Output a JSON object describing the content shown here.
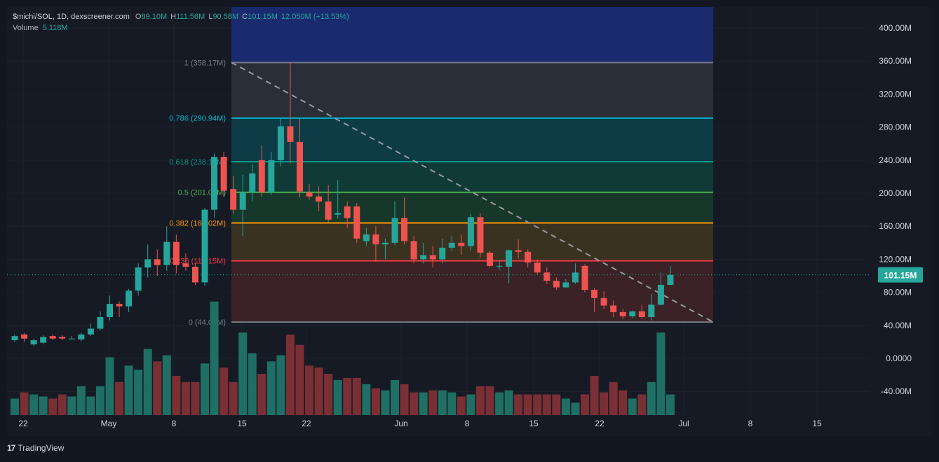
{
  "legend": {
    "pair": "$michi/SOL, 1D, dexscreener.com",
    "o_label": "O",
    "o_value": "89.10M",
    "h_label": "H",
    "h_value": "111.56M",
    "l_label": "L",
    "l_value": "90.58M",
    "c_label": "C",
    "c_value": "101.15M",
    "change": "12.050M (+13.53%)",
    "volume_label": "Volume",
    "volume_value": "5.118M"
  },
  "footer": {
    "brand": "TradingView",
    "logo_glyph": "17"
  },
  "colors": {
    "up": "#26a69a",
    "down": "#ef5350",
    "up_volume": "#1f6f64",
    "down_volume": "#7a2f35",
    "fib_1": "#787b86",
    "fib_786": "#00bcd4",
    "fib_618": "#009688",
    "fib_5": "#4caf50",
    "fib_382": "#ff9800",
    "fib_236": "#f23645",
    "fib_0": "#787b86",
    "ext_band": "#1a2a6e",
    "price_label_bg": "#26a69a"
  },
  "chart_data": {
    "type": "candlestick",
    "y_axis_ticks": [
      "400.00M",
      "360.00M",
      "320.00M",
      "280.00M",
      "240.00M",
      "200.00M",
      "160.00M",
      "120.00M",
      "80.00M",
      "40.00M",
      "0.0000",
      "-40.00M"
    ],
    "x_axis_ticks": [
      "22",
      "May",
      "8",
      "15",
      "22",
      "Jun",
      "8",
      "15",
      "22",
      "Jul",
      "8",
      "15"
    ],
    "ylim": [
      -62,
      425
    ],
    "current_price": "101.15M",
    "grid": true,
    "fibonacci": [
      {
        "level": "1",
        "value": 358.17,
        "label": "1 (358.17M)"
      },
      {
        "level": "0.786",
        "value": 290.94,
        "label": "0.786 (290.94M)"
      },
      {
        "level": "0.618",
        "value": 238.16,
        "label": "0.618 (238.16M)"
      },
      {
        "level": "0.5",
        "value": 201.09,
        "label": "0.5 (201.09M)"
      },
      {
        "level": "0.382",
        "value": 164.02,
        "label": "0.382 (164.02M)"
      },
      {
        "level": "0.236",
        "value": 118.15,
        "label": "0.236 (118.15M)"
      },
      {
        "level": "0",
        "value": 44.0,
        "label": "0 (44.00M)"
      }
    ],
    "candles": [
      [
        22,
        27,
        20,
        29,
        "v",
        8
      ],
      [
        29,
        24,
        20,
        31,
        "v",
        11
      ],
      [
        17,
        22,
        15,
        24,
        "v",
        10
      ],
      [
        19,
        26,
        17,
        28,
        "v",
        9
      ],
      [
        27,
        24,
        22,
        29,
        "v",
        8
      ],
      [
        26,
        24,
        22,
        28,
        "v",
        10
      ],
      [
        24,
        24,
        23,
        27,
        "v",
        9
      ],
      [
        23,
        29,
        21,
        31,
        "v",
        14
      ],
      [
        29,
        36,
        27,
        42,
        "v",
        9
      ],
      [
        36,
        50,
        34,
        57,
        "v",
        14
      ],
      [
        50,
        66,
        46,
        76,
        "v",
        28
      ],
      [
        66,
        63,
        50,
        69,
        "v",
        16
      ],
      [
        63,
        82,
        56,
        84,
        "v",
        24
      ],
      [
        82,
        110,
        76,
        115,
        "v",
        22
      ],
      [
        110,
        120,
        98,
        138,
        "v",
        32
      ],
      [
        120,
        113,
        100,
        132,
        "v",
        26
      ],
      [
        113,
        141,
        106,
        160,
        "v",
        29
      ],
      [
        141,
        113,
        103,
        150,
        "v",
        19
      ],
      [
        115,
        111,
        106,
        127,
        "v",
        16
      ],
      [
        111,
        92,
        89,
        115,
        "v",
        16
      ],
      [
        92,
        180,
        88,
        182,
        "v",
        25
      ],
      [
        180,
        244,
        170,
        248,
        "v",
        55
      ],
      [
        244,
        203,
        196,
        250,
        "v",
        23
      ],
      [
        205,
        180,
        175,
        221,
        "v",
        16
      ],
      [
        180,
        201,
        148,
        222,
        "v",
        40
      ],
      [
        201,
        224,
        190,
        235,
        "v",
        30
      ],
      [
        240,
        201,
        196,
        258,
        "v",
        20
      ],
      [
        201,
        240,
        198,
        250,
        "v",
        26
      ],
      [
        240,
        281,
        232,
        290,
        "v",
        29
      ],
      [
        281,
        262,
        236,
        358,
        "v",
        39
      ],
      [
        262,
        202,
        195,
        290,
        "v",
        34
      ],
      [
        201,
        196,
        192,
        211,
        "v",
        24
      ],
      [
        196,
        190,
        178,
        208,
        "v",
        23
      ],
      [
        190,
        168,
        165,
        210,
        "v",
        20
      ],
      [
        174,
        176,
        169,
        216,
        "v",
        17
      ],
      [
        184,
        170,
        158,
        190,
        "v",
        18
      ],
      [
        184,
        145,
        140,
        188,
        "v",
        18
      ],
      [
        142,
        150,
        136,
        158,
        "v",
        15
      ],
      [
        150,
        138,
        117,
        160,
        "v",
        13
      ],
      [
        138,
        140,
        120,
        145,
        "v",
        12
      ],
      [
        140,
        170,
        137,
        190,
        "v",
        17
      ],
      [
        170,
        142,
        138,
        195,
        "v",
        15
      ],
      [
        142,
        120,
        115,
        148,
        "v",
        11
      ],
      [
        120,
        125,
        115,
        140,
        "v",
        11
      ],
      [
        125,
        120,
        110,
        136,
        "v",
        12
      ],
      [
        120,
        134,
        115,
        145,
        "v",
        12
      ],
      [
        134,
        140,
        130,
        148,
        "v",
        11
      ],
      [
        140,
        136,
        125,
        150,
        "v",
        9
      ],
      [
        136,
        171,
        131,
        175,
        "v",
        10
      ],
      [
        171,
        128,
        122,
        176,
        "v",
        14
      ],
      [
        128,
        112,
        110,
        130,
        "v",
        14
      ],
      [
        112,
        112,
        107,
        119,
        "v",
        11
      ],
      [
        111,
        131,
        91,
        132,
        "v",
        12
      ],
      [
        131,
        129,
        121,
        144,
        "v",
        10
      ],
      [
        129,
        116,
        110,
        132,
        "v",
        10
      ],
      [
        116,
        104,
        102,
        120,
        "v",
        10
      ],
      [
        104,
        94,
        90,
        110,
        "v",
        10
      ],
      [
        94,
        86,
        83,
        98,
        "v",
        10
      ],
      [
        86,
        92,
        85,
        96,
        "v",
        8
      ],
      [
        92,
        104,
        90,
        115,
        "v",
        6
      ],
      [
        112,
        83,
        80,
        114,
        "v",
        10
      ],
      [
        83,
        73,
        56,
        85,
        "v",
        19
      ],
      [
        73,
        64,
        60,
        81,
        "v",
        11
      ],
      [
        64,
        56,
        50,
        70,
        "v",
        16
      ],
      [
        56,
        51,
        48,
        60,
        "v",
        12
      ],
      [
        51,
        57,
        49,
        58,
        "v",
        8
      ],
      [
        57,
        50,
        48,
        65,
        "v",
        10
      ],
      [
        50,
        65,
        46,
        78,
        "v",
        16
      ],
      [
        65,
        89,
        64,
        104,
        "v",
        40
      ],
      [
        89,
        101,
        91,
        112,
        "v",
        10
      ]
    ]
  }
}
